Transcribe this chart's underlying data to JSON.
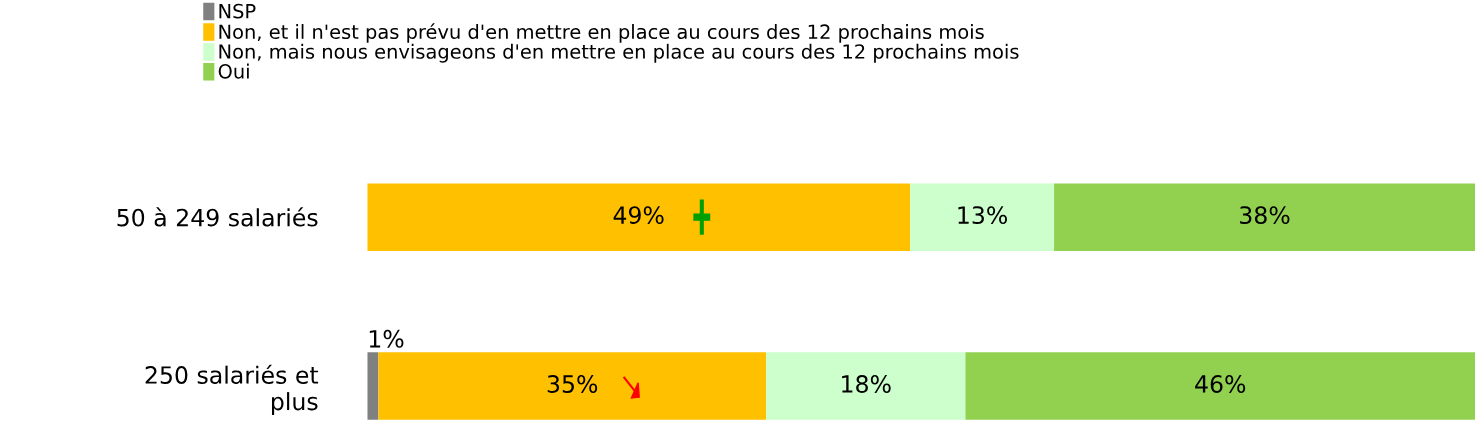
{
  "chart_data": {
    "type": "bar",
    "orientation": "horizontal",
    "stacked": true,
    "legend": "top",
    "categories": [
      "50 à 249 salariés",
      "250 salariés et\nplus"
    ],
    "series": [
      {
        "name": "NSP",
        "color": "#808080",
        "values": [
          0,
          1
        ],
        "value_labels": [
          null,
          "1%"
        ]
      },
      {
        "name": "Non, et il n'est pas prévu d'en mettre en place au cours des 12 prochains mois",
        "color": "#ffc000",
        "values": [
          49,
          35
        ],
        "value_labels": [
          "49%",
          "35%"
        ]
      },
      {
        "name": "Non, mais nous envisageons d'en mettre en place au cours des 12 prochains mois",
        "color": "#ccffcc",
        "values": [
          13,
          18
        ],
        "value_labels": [
          "13%",
          "18%"
        ]
      },
      {
        "name": "Oui",
        "color": "#92d050",
        "values": [
          38,
          46
        ],
        "value_labels": [
          "38%",
          "46%"
        ]
      }
    ]
  }
}
